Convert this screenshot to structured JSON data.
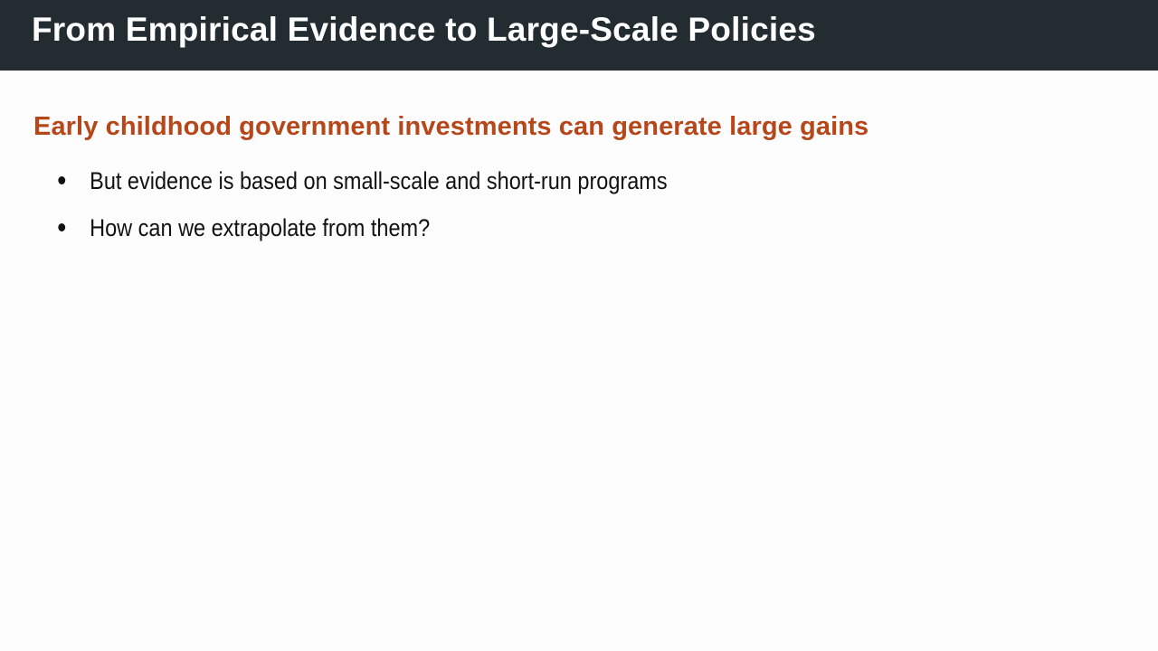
{
  "slide": {
    "title": "From Empirical Evidence to Large-Scale Policies",
    "subheading": "Early childhood government investments can generate large gains",
    "bullets": [
      "But evidence is based on small-scale and short-run programs",
      "How can we extrapolate from them?"
    ]
  },
  "colors": {
    "title_bar_bg": "#222c31",
    "title_text": "#ffffff",
    "accent": "#b5471b",
    "body_text": "#111111"
  },
  "icons": {
    "bullet": "bullet-dot-icon"
  }
}
